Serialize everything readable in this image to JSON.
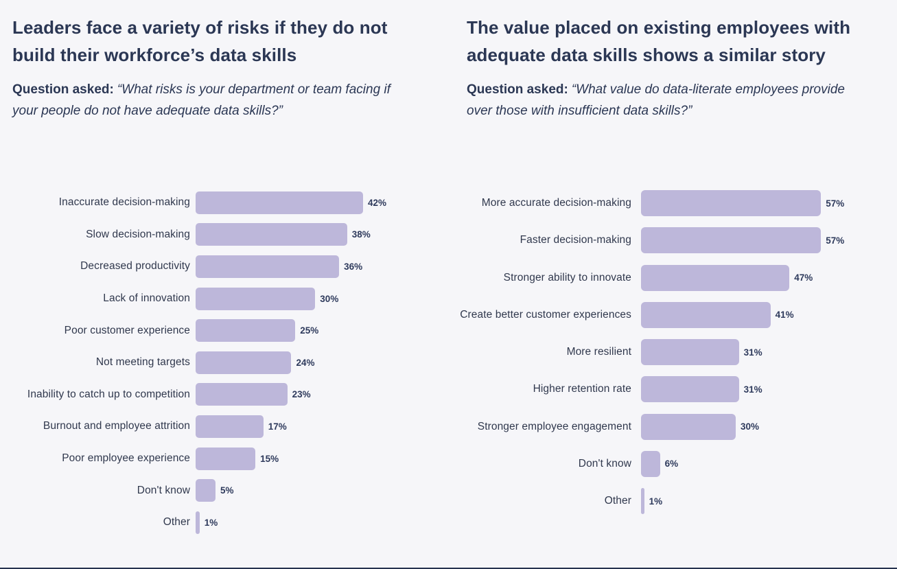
{
  "page": {
    "background_color": "#f6f6f9",
    "bottom_line_color": "#26324f",
    "text_color": "#2b3754",
    "bar_color": "#bdb7da"
  },
  "chart_data": [
    {
      "type": "bar",
      "orientation": "horizontal",
      "title": "Leaders face a variety of risks if they do not build their workforce’s data skills",
      "question_label": "Question asked:",
      "question_quote": "“What risks is your department or team facing if your people do not have adequate data skills?”",
      "unit": "%",
      "bar_color": "#bdb7da",
      "grid": false,
      "axes_shown": false,
      "value_labels_shown": true,
      "categories": [
        "Inaccurate decision-making",
        "Slow decision-making",
        "Decreased productivity",
        "Lack of innovation",
        "Poor customer experience",
        "Not meeting targets",
        "Inability to catch up to competition",
        "Burnout and employee attrition",
        "Poor employee experience",
        "Don't know",
        "Other"
      ],
      "values": [
        42,
        38,
        36,
        30,
        25,
        24,
        23,
        17,
        15,
        5,
        1
      ]
    },
    {
      "type": "bar",
      "orientation": "horizontal",
      "title": "The value placed on existing employees with adequate data skills shows a similar story",
      "question_label": "Question asked:",
      "question_quote": "“What value do data-literate employees provide over those with insufficient data skills?”",
      "unit": "%",
      "bar_color": "#bdb7da",
      "grid": false,
      "axes_shown": false,
      "value_labels_shown": true,
      "categories": [
        "More accurate decision-making",
        "Faster decision-making",
        "Stronger ability to innovate",
        "Create better customer experiences",
        "More resilient",
        "Higher retention rate",
        "Stronger employee engagement",
        "Don't know",
        "Other"
      ],
      "values": [
        57,
        57,
        47,
        41,
        31,
        31,
        30,
        6,
        1
      ]
    }
  ]
}
